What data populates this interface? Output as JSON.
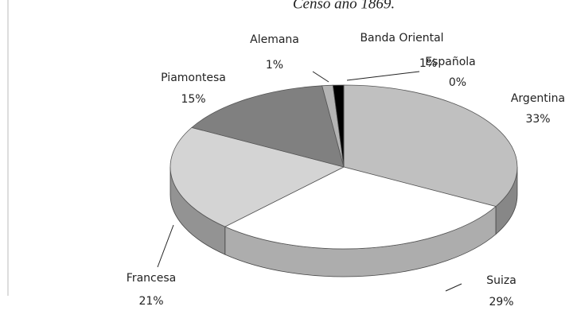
{
  "chart_data": {
    "type": "pie3d",
    "title": "Censo año 1869.",
    "categories": [
      "Argentina",
      "Suiza",
      "Francesa",
      "Piamontesa",
      "Alemana",
      "Banda Oriental",
      "Española"
    ],
    "values": [
      33,
      29,
      21,
      15,
      1,
      1,
      0
    ],
    "value_labels": [
      "33%",
      "29%",
      "21%",
      "15%",
      "1%",
      "1%",
      "0%"
    ],
    "colors": [
      "#c0c0c0",
      "#ffffff",
      "#d4d4d4",
      "#808080",
      "#b4b4b4",
      "#000000",
      "#5a5a5a"
    ]
  }
}
